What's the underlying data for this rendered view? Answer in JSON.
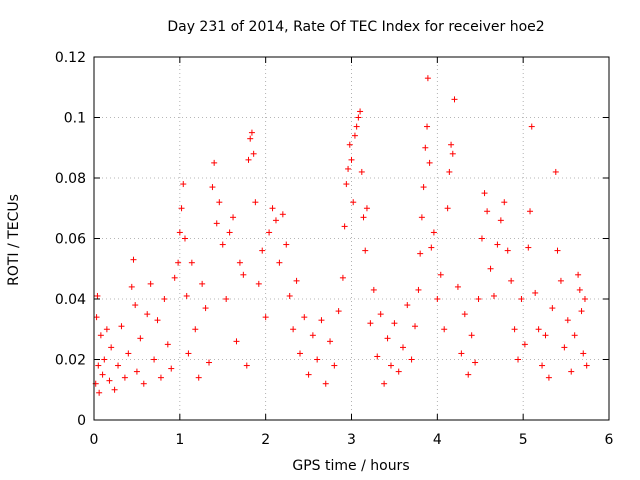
{
  "chart_data": {
    "type": "scatter",
    "title": "Day 231 of 2014, Rate Of TEC Index for receiver hoe2",
    "xlabel": "GPS time / hours",
    "ylabel": "ROTI / TECUs",
    "xlim": [
      0,
      6
    ],
    "ylim": [
      0,
      0.12
    ],
    "xticks": [
      "0",
      "1",
      "2",
      "3",
      "4",
      "5",
      "6"
    ],
    "yticks": [
      "0",
      "0.02",
      "0.04",
      "0.06",
      "0.08",
      "0.1",
      "0.12"
    ],
    "grid": true,
    "marker": "+",
    "color": "#ff0000",
    "series": [
      {
        "name": "ROTI",
        "points": [
          [
            0.02,
            0.012
          ],
          [
            0.03,
            0.034
          ],
          [
            0.04,
            0.041
          ],
          [
            0.05,
            0.018
          ],
          [
            0.06,
            0.009
          ],
          [
            0.08,
            0.028
          ],
          [
            0.1,
            0.015
          ],
          [
            0.12,
            0.02
          ],
          [
            0.15,
            0.03
          ],
          [
            0.18,
            0.013
          ],
          [
            0.2,
            0.024
          ],
          [
            0.24,
            0.01
          ],
          [
            0.28,
            0.018
          ],
          [
            0.32,
            0.031
          ],
          [
            0.36,
            0.014
          ],
          [
            0.4,
            0.022
          ],
          [
            0.44,
            0.044
          ],
          [
            0.46,
            0.053
          ],
          [
            0.48,
            0.038
          ],
          [
            0.5,
            0.016
          ],
          [
            0.54,
            0.027
          ],
          [
            0.58,
            0.012
          ],
          [
            0.62,
            0.035
          ],
          [
            0.66,
            0.045
          ],
          [
            0.7,
            0.02
          ],
          [
            0.74,
            0.033
          ],
          [
            0.78,
            0.014
          ],
          [
            0.82,
            0.04
          ],
          [
            0.86,
            0.025
          ],
          [
            0.9,
            0.017
          ],
          [
            0.94,
            0.047
          ],
          [
            0.98,
            0.052
          ],
          [
            1.0,
            0.062
          ],
          [
            1.02,
            0.07
          ],
          [
            1.04,
            0.078
          ],
          [
            1.06,
            0.06
          ],
          [
            1.08,
            0.041
          ],
          [
            1.1,
            0.022
          ],
          [
            1.14,
            0.052
          ],
          [
            1.18,
            0.03
          ],
          [
            1.22,
            0.014
          ],
          [
            1.26,
            0.045
          ],
          [
            1.3,
            0.037
          ],
          [
            1.34,
            0.019
          ],
          [
            1.38,
            0.077
          ],
          [
            1.4,
            0.085
          ],
          [
            1.43,
            0.065
          ],
          [
            1.46,
            0.072
          ],
          [
            1.5,
            0.058
          ],
          [
            1.54,
            0.04
          ],
          [
            1.58,
            0.062
          ],
          [
            1.62,
            0.067
          ],
          [
            1.66,
            0.026
          ],
          [
            1.7,
            0.052
          ],
          [
            1.74,
            0.048
          ],
          [
            1.78,
            0.018
          ],
          [
            1.8,
            0.086
          ],
          [
            1.82,
            0.093
          ],
          [
            1.84,
            0.095
          ],
          [
            1.86,
            0.088
          ],
          [
            1.88,
            0.072
          ],
          [
            1.92,
            0.045
          ],
          [
            1.96,
            0.056
          ],
          [
            2.0,
            0.034
          ],
          [
            2.04,
            0.062
          ],
          [
            2.08,
            0.07
          ],
          [
            2.12,
            0.066
          ],
          [
            2.16,
            0.052
          ],
          [
            2.2,
            0.068
          ],
          [
            2.24,
            0.058
          ],
          [
            2.28,
            0.041
          ],
          [
            2.32,
            0.03
          ],
          [
            2.36,
            0.046
          ],
          [
            2.4,
            0.022
          ],
          [
            2.45,
            0.034
          ],
          [
            2.5,
            0.015
          ],
          [
            2.55,
            0.028
          ],
          [
            2.6,
            0.02
          ],
          [
            2.65,
            0.033
          ],
          [
            2.7,
            0.012
          ],
          [
            2.75,
            0.026
          ],
          [
            2.8,
            0.018
          ],
          [
            2.85,
            0.036
          ],
          [
            2.9,
            0.047
          ],
          [
            2.92,
            0.064
          ],
          [
            2.94,
            0.078
          ],
          [
            2.96,
            0.083
          ],
          [
            2.98,
            0.091
          ],
          [
            3.0,
            0.086
          ],
          [
            3.02,
            0.072
          ],
          [
            3.04,
            0.094
          ],
          [
            3.06,
            0.097
          ],
          [
            3.08,
            0.1
          ],
          [
            3.1,
            0.102
          ],
          [
            3.12,
            0.082
          ],
          [
            3.14,
            0.067
          ],
          [
            3.16,
            0.056
          ],
          [
            3.18,
            0.07
          ],
          [
            3.22,
            0.032
          ],
          [
            3.26,
            0.043
          ],
          [
            3.3,
            0.021
          ],
          [
            3.34,
            0.035
          ],
          [
            3.38,
            0.012
          ],
          [
            3.42,
            0.027
          ],
          [
            3.46,
            0.018
          ],
          [
            3.5,
            0.032
          ],
          [
            3.55,
            0.016
          ],
          [
            3.6,
            0.024
          ],
          [
            3.65,
            0.038
          ],
          [
            3.7,
            0.02
          ],
          [
            3.74,
            0.031
          ],
          [
            3.78,
            0.043
          ],
          [
            3.8,
            0.055
          ],
          [
            3.82,
            0.067
          ],
          [
            3.84,
            0.077
          ],
          [
            3.86,
            0.09
          ],
          [
            3.88,
            0.097
          ],
          [
            3.89,
            0.113
          ],
          [
            3.91,
            0.085
          ],
          [
            3.93,
            0.057
          ],
          [
            3.96,
            0.062
          ],
          [
            4.0,
            0.04
          ],
          [
            4.04,
            0.048
          ],
          [
            4.08,
            0.03
          ],
          [
            4.12,
            0.07
          ],
          [
            4.14,
            0.082
          ],
          [
            4.16,
            0.091
          ],
          [
            4.18,
            0.088
          ],
          [
            4.2,
            0.106
          ],
          [
            4.24,
            0.044
          ],
          [
            4.28,
            0.022
          ],
          [
            4.32,
            0.035
          ],
          [
            4.36,
            0.015
          ],
          [
            4.4,
            0.028
          ],
          [
            4.44,
            0.019
          ],
          [
            4.48,
            0.04
          ],
          [
            4.52,
            0.06
          ],
          [
            4.55,
            0.075
          ],
          [
            4.58,
            0.069
          ],
          [
            4.62,
            0.05
          ],
          [
            4.66,
            0.041
          ],
          [
            4.7,
            0.058
          ],
          [
            4.74,
            0.066
          ],
          [
            4.78,
            0.072
          ],
          [
            4.82,
            0.056
          ],
          [
            4.86,
            0.046
          ],
          [
            4.9,
            0.03
          ],
          [
            4.94,
            0.02
          ],
          [
            4.98,
            0.04
          ],
          [
            5.02,
            0.025
          ],
          [
            5.06,
            0.057
          ],
          [
            5.08,
            0.069
          ],
          [
            5.1,
            0.097
          ],
          [
            5.14,
            0.042
          ],
          [
            5.18,
            0.03
          ],
          [
            5.22,
            0.018
          ],
          [
            5.26,
            0.028
          ],
          [
            5.3,
            0.014
          ],
          [
            5.34,
            0.037
          ],
          [
            5.38,
            0.082
          ],
          [
            5.4,
            0.056
          ],
          [
            5.44,
            0.046
          ],
          [
            5.48,
            0.024
          ],
          [
            5.52,
            0.033
          ],
          [
            5.56,
            0.016
          ],
          [
            5.6,
            0.028
          ],
          [
            5.64,
            0.048
          ],
          [
            5.66,
            0.043
          ],
          [
            5.68,
            0.036
          ],
          [
            5.7,
            0.022
          ],
          [
            5.72,
            0.04
          ],
          [
            5.74,
            0.018
          ]
        ]
      }
    ]
  }
}
